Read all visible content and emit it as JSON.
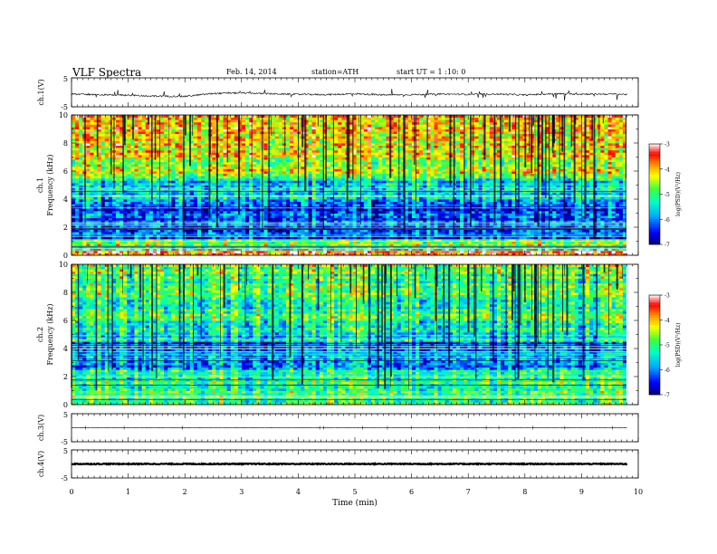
{
  "header": {
    "title": "VLF Spectra",
    "date": "Feb. 14, 2014",
    "station": "station=ATH",
    "start": "start  UT =   1 :10: 0"
  },
  "chart_data": [
    {
      "type": "line",
      "ylabel": "ch.1(V)",
      "ylim": [
        -5,
        5
      ],
      "yticks": [
        "5",
        "-5"
      ],
      "x": [
        0,
        0.5,
        1,
        1.5,
        2,
        2.5,
        3,
        3.5,
        4,
        4.5,
        5,
        5.5,
        6,
        6.5,
        7,
        7.5,
        8,
        8.5,
        9,
        9.5,
        9.8
      ],
      "values": [
        -0.6,
        -0.8,
        -1.0,
        -1.3,
        -1.4,
        -0.4,
        -0.2,
        -0.5,
        -0.7,
        -0.8,
        -0.5,
        -0.9,
        -0.8,
        -0.6,
        -0.7,
        -0.6,
        -0.9,
        -0.5,
        -0.6,
        -0.6,
        -0.7
      ]
    },
    {
      "type": "heatmap",
      "ylabel_channel": "ch.1",
      "ylabel": "Frequency (kHz)",
      "ylim": [
        0,
        10
      ],
      "yticks": [
        "0",
        "2",
        "4",
        "6",
        "8",
        "10"
      ],
      "colorbar": {
        "label": "log(PSD)(V²/Hz)",
        "range": [
          -7,
          -3
        ],
        "ticks": [
          "-3",
          "-4",
          "-5",
          "-6",
          "-7"
        ]
      }
    },
    {
      "type": "heatmap",
      "ylabel_channel": "ch.2",
      "ylabel": "Frequency (kHz)",
      "ylim": [
        0,
        10
      ],
      "yticks": [
        "0",
        "2",
        "4",
        "6",
        "8",
        "10"
      ],
      "colorbar": {
        "label": "log(PSD)(V²/Hz)",
        "range": [
          -7,
          -3
        ],
        "ticks": [
          "-3",
          "-4",
          "-5",
          "-6",
          "-7"
        ]
      }
    },
    {
      "type": "line",
      "ylabel": "ch.3(V)",
      "ylim": [
        -5,
        5
      ],
      "yticks": [
        "5",
        "-5"
      ],
      "x": [
        0,
        9.8
      ],
      "values": [
        0,
        0
      ]
    },
    {
      "type": "line",
      "ylabel": "ch.4(V)",
      "ylim": [
        -5,
        5
      ],
      "yticks": [
        "5",
        "-5"
      ],
      "x": [
        0,
        9.8
      ],
      "values": [
        0,
        0
      ]
    }
  ],
  "xaxis": {
    "label": "Time (min)",
    "ticks": [
      "0",
      "1",
      "2",
      "3",
      "4",
      "5",
      "6",
      "7",
      "8",
      "9",
      "10"
    ],
    "range": [
      0,
      10
    ]
  },
  "colors": {
    "bg": "#ffffff",
    "ink": "#000000"
  }
}
